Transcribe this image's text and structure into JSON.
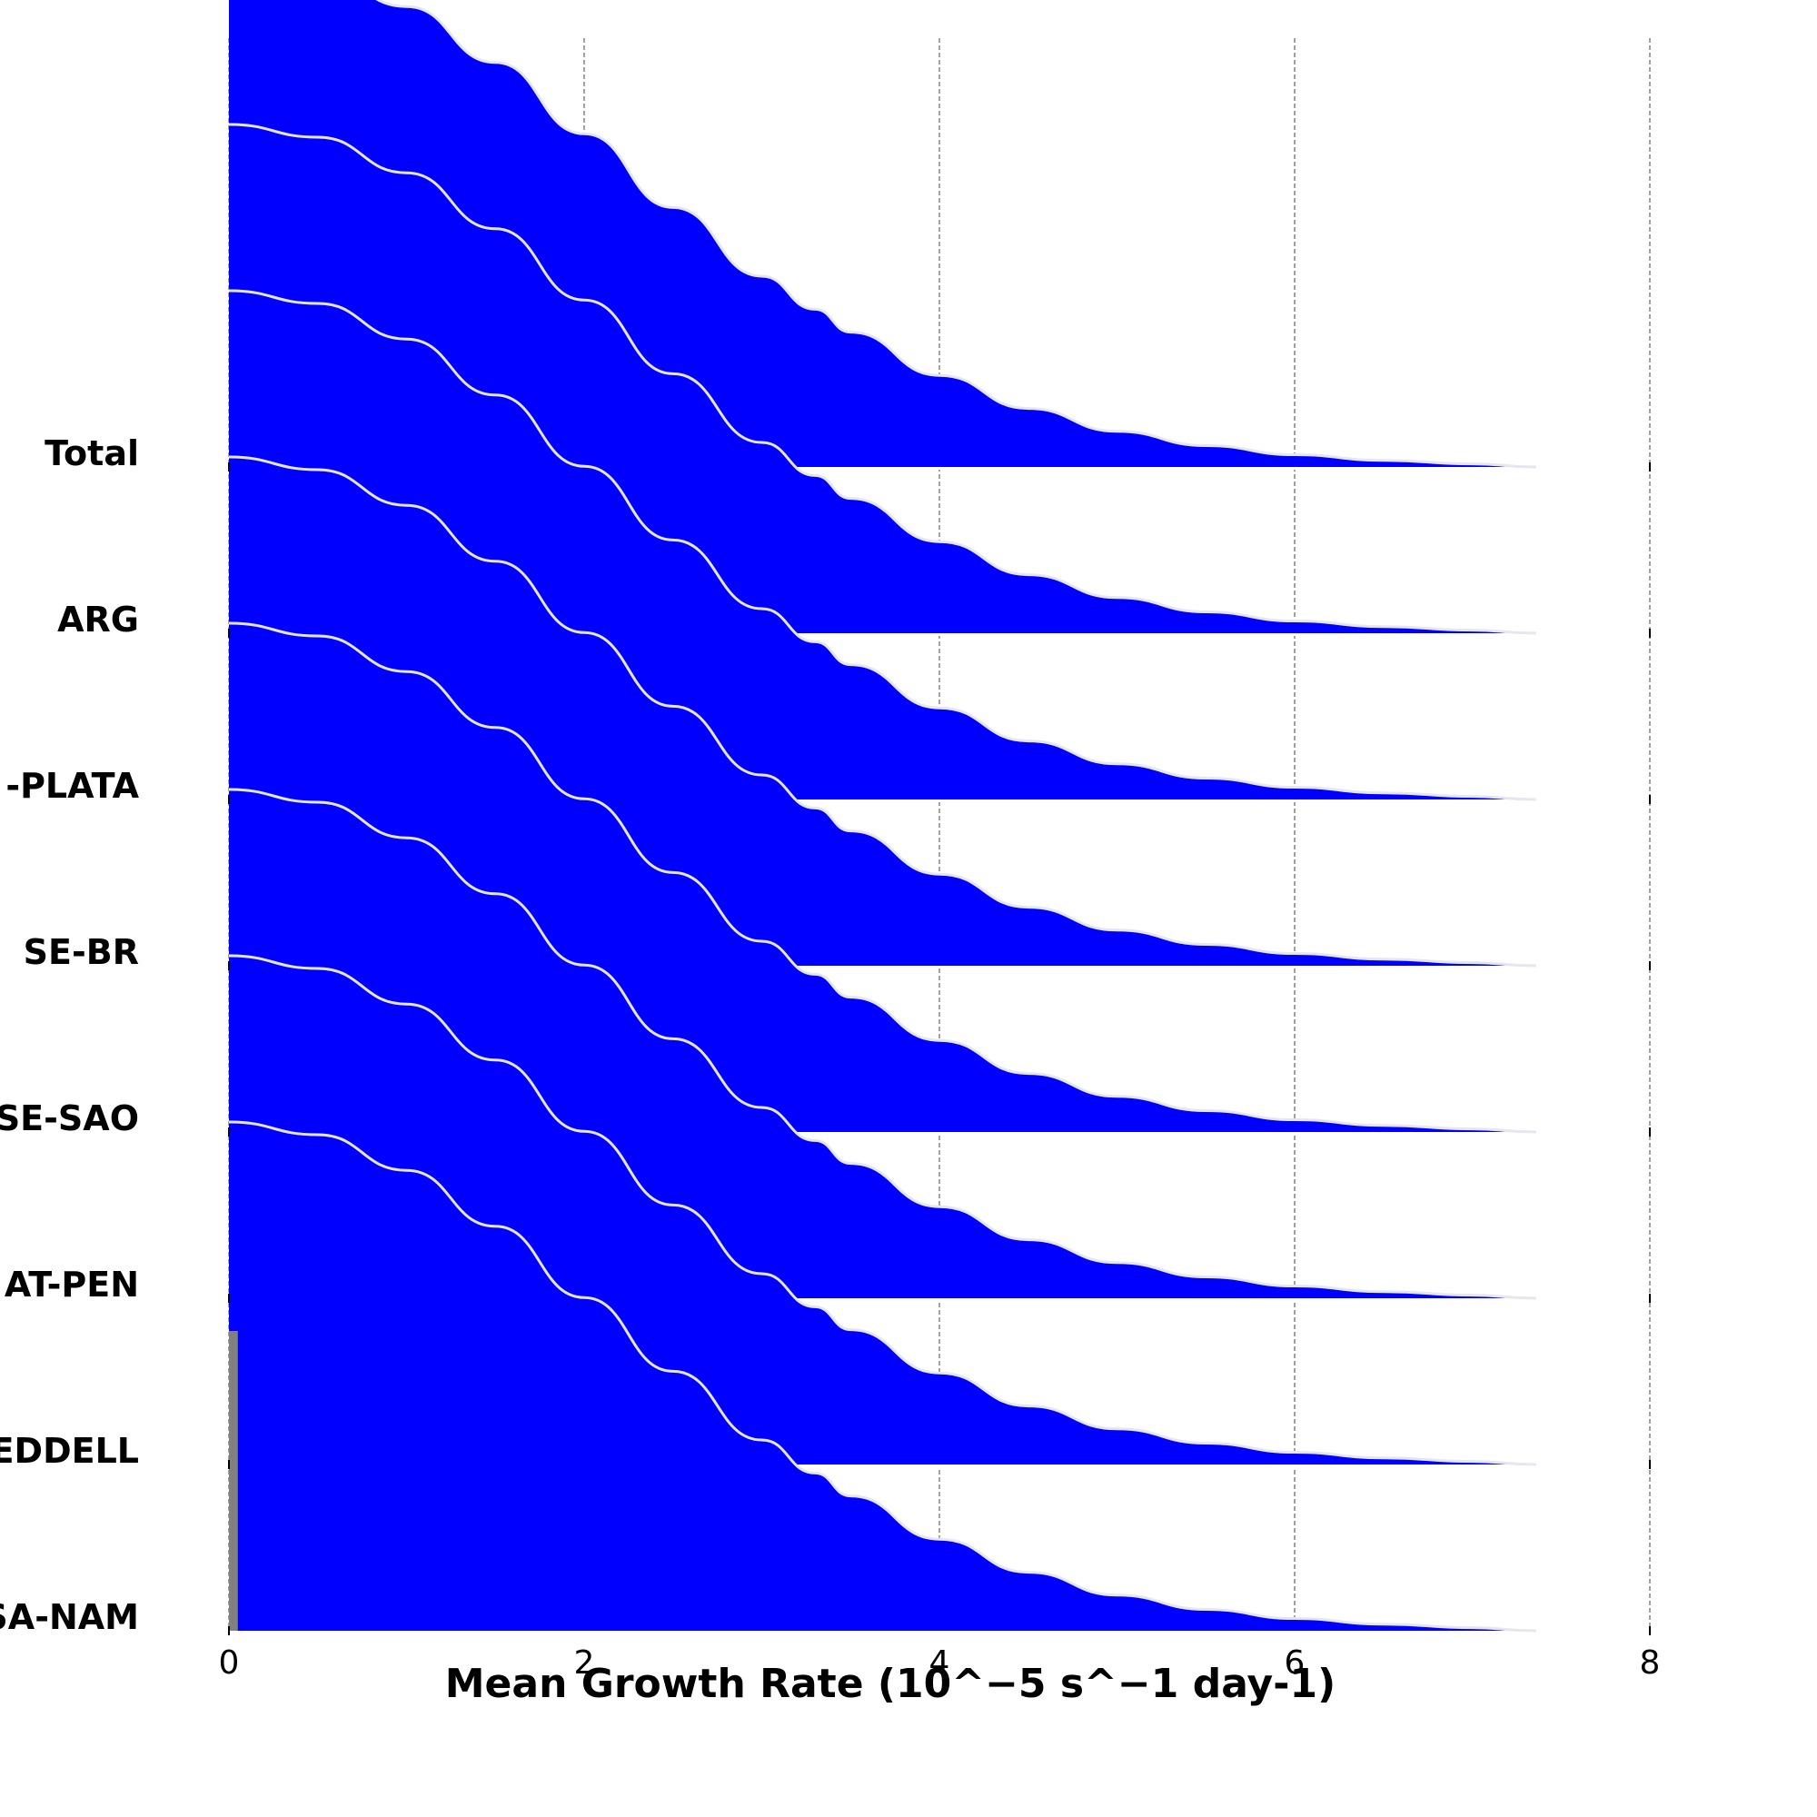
{
  "chart_data": {
    "type": "area",
    "xlabel": "Mean Growth Rate (10^−5 s^−1 day-1)",
    "ylabel": "",
    "title": "",
    "xlim": [
      0,
      8
    ],
    "x_ticks": [
      "0",
      "2",
      "4",
      "6",
      "8"
    ],
    "grid": "vertical dashed",
    "legend": "none",
    "fill_color": "#0000ff",
    "line_color": "#e6e6f0",
    "categories": [
      "Total",
      "ARG",
      "RIO-PLATA",
      "SE-BR",
      "SE-SAO",
      "ANTARCT-PEN",
      "WEDDELL",
      "SA-NAM"
    ],
    "category_labels_visible": [
      "Total",
      "ARG",
      "-PLATA",
      "SE-BR",
      "SE-SAO",
      "AT-PEN",
      "EDDELL",
      "SA-NAM"
    ],
    "density_x": [
      0,
      0.5,
      1.0,
      1.5,
      2.0,
      2.5,
      3.0,
      3.3,
      3.5,
      4.0,
      4.5,
      5.0,
      5.5,
      6.0,
      6.5,
      7.0,
      7.36
    ],
    "density_y": [
      1.0,
      0.975,
      0.905,
      0.795,
      0.655,
      0.51,
      0.375,
      0.31,
      0.265,
      0.18,
      0.115,
      0.07,
      0.042,
      0.024,
      0.013,
      0.006,
      0.0
    ],
    "mid_values": [
      3.3,
      3.3,
      3.3,
      3.3,
      3.3,
      3.3,
      3.3,
      0
    ],
    "bar_values": [
      0,
      0,
      0,
      0,
      0,
      0,
      0,
      0.05
    ]
  }
}
